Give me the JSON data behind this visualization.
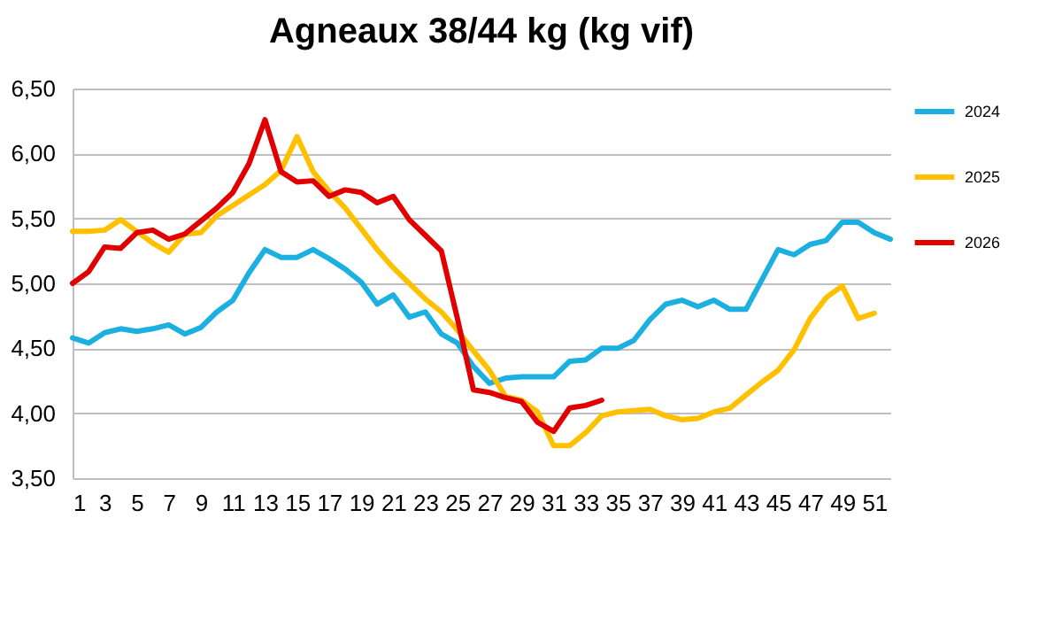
{
  "chart_data": {
    "type": "line",
    "title": "Agneaux 38/44 kg (kg vif)",
    "x": [
      1,
      2,
      3,
      4,
      5,
      6,
      7,
      8,
      9,
      10,
      11,
      12,
      13,
      14,
      15,
      16,
      17,
      18,
      19,
      20,
      21,
      22,
      23,
      24,
      25,
      26,
      27,
      28,
      29,
      30,
      31,
      32,
      33,
      34,
      35,
      36,
      37,
      38,
      39,
      40,
      41,
      42,
      43,
      44,
      45,
      46,
      47,
      48,
      49,
      50,
      51,
      52
    ],
    "xlim": [
      1,
      52
    ],
    "xticks": [
      1,
      3,
      5,
      7,
      9,
      11,
      13,
      15,
      17,
      19,
      21,
      23,
      25,
      27,
      29,
      31,
      33,
      35,
      37,
      39,
      41,
      43,
      45,
      47,
      49,
      51
    ],
    "ylim": [
      3.5,
      6.5
    ],
    "yticks": [
      {
        "value": 3.5,
        "label": "3,50"
      },
      {
        "value": 4,
        "label": "4,00"
      },
      {
        "value": 4.5,
        "label": "4,50"
      },
      {
        "value": 5,
        "label": "5,00"
      },
      {
        "value": 5.5,
        "label": "5,50"
      },
      {
        "value": 6,
        "label": "6,00"
      },
      {
        "value": 6.5,
        "label": "6,50"
      }
    ],
    "grid": "y",
    "legend": "right",
    "marker": "none",
    "line_style": "solid",
    "series": [
      {
        "name": "2024",
        "color": "#1cb0e0",
        "values": [
          4.58,
          4.54,
          4.62,
          4.65,
          4.63,
          4.65,
          4.68,
          4.61,
          4.66,
          4.78,
          4.87,
          5.08,
          5.26,
          5.2,
          5.2,
          5.26,
          5.19,
          5.11,
          5.01,
          4.84,
          4.91,
          4.74,
          4.78,
          4.61,
          4.54,
          4.36,
          4.23,
          4.27,
          4.28,
          4.28,
          4.28,
          4.4,
          4.41,
          4.5,
          4.5,
          4.56,
          4.72,
          4.84,
          4.87,
          4.82,
          4.87,
          4.8,
          4.8,
          5.03,
          5.26,
          5.22,
          5.3,
          5.33,
          5.47,
          5.47,
          5.39,
          5.34
        ]
      },
      {
        "name": "2025",
        "color": "#ffc000",
        "values": [
          5.4,
          5.4,
          5.41,
          5.49,
          5.4,
          5.31,
          5.24,
          5.38,
          5.39,
          5.52,
          5.6,
          5.68,
          5.76,
          5.87,
          6.13,
          5.86,
          5.71,
          5.58,
          5.42,
          5.26,
          5.12,
          5.0,
          4.88,
          4.78,
          4.64,
          4.48,
          4.33,
          4.13,
          4.1,
          4.01,
          3.75,
          3.75,
          3.85,
          3.98,
          4.01,
          4.02,
          4.03,
          3.98,
          3.95,
          3.96,
          4.01,
          4.04,
          4.14,
          4.24,
          4.33,
          4.49,
          4.73,
          4.89,
          4.98,
          4.73,
          4.77,
          null
        ]
      },
      {
        "name": "2026",
        "color": "#e00000",
        "values": [
          5.0,
          5.09,
          5.28,
          5.27,
          5.39,
          5.41,
          5.34,
          5.38,
          5.48,
          5.58,
          5.7,
          5.92,
          6.26,
          5.86,
          5.78,
          5.79,
          5.67,
          5.72,
          5.7,
          5.62,
          5.67,
          5.49,
          5.37,
          5.25,
          4.73,
          4.18,
          4.16,
          4.12,
          4.09,
          3.93,
          3.86,
          4.04,
          4.06,
          4.1,
          null,
          null,
          null,
          null,
          null,
          null,
          null,
          null,
          null,
          null,
          null,
          null,
          null,
          null,
          null,
          null,
          null,
          null
        ]
      }
    ]
  }
}
